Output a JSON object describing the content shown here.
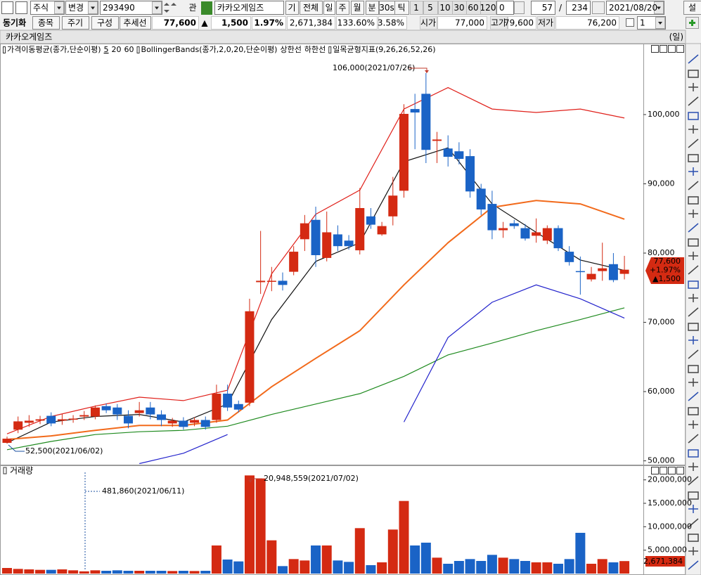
{
  "toolbar": {
    "row1": [
      "주식",
      "변경",
      "293490",
      "관",
      "카카오게임즈",
      "기",
      "전체",
      "일",
      "주",
      "월",
      "분",
      "30s",
      "틱",
      "1",
      "5",
      "10",
      "30",
      "60",
      "120",
      "0",
      "57",
      "/",
      "234",
      "2021/08/20",
      "설"
    ],
    "row2": [
      "동기화",
      "종목",
      "주기",
      "구성",
      "추세선",
      "77,600",
      "▲",
      "1,500",
      "1.97%",
      "2,671,384",
      "133.60%",
      "3.58%",
      "시가",
      "77,000",
      "고가",
      "79,600",
      "저가",
      "76,200",
      "1"
    ]
  },
  "chart_title": "카카오게임즈",
  "period": "(일)",
  "chart_data": [
    {
      "type": "candlestick",
      "indicators": [
        "가격이동평균(종가,단순이평)",
        "BollingerBands(종가,2,0,20,단순이평)",
        "일목균형지표(9,26,26,52,26)"
      ],
      "up_color": "#d42a12",
      "down_color": "#1a63c6",
      "open": [
        52600,
        54500,
        55500,
        55800,
        56500,
        55800,
        56000,
        56400,
        56400,
        57900,
        57700,
        56500,
        56900,
        57700,
        56700,
        55400,
        55800,
        55500,
        55900,
        55900,
        59700,
        58200,
        58400,
        75800,
        75900,
        76000,
        77300,
        82000,
        84800,
        79300,
        82700,
        81800,
        80400,
        85300,
        82700,
        85300,
        89000,
        100800,
        103000,
        96200,
        95100,
        94700,
        94000,
        89300,
        87100,
        83300,
        84300,
        83600,
        82500,
        81800,
        83600,
        80200,
        77400,
        76200,
        77400,
        78400,
        77000
      ],
      "high": [
        53500,
        56400,
        56600,
        56500,
        57000,
        56800,
        56600,
        57200,
        58000,
        58300,
        58200,
        57300,
        58500,
        58500,
        57300,
        56200,
        56300,
        56300,
        56400,
        61000,
        61000,
        58700,
        73400,
        83200,
        78000,
        77200,
        81000,
        85500,
        86700,
        86000,
        84000,
        82600,
        89400,
        86500,
        84500,
        91000,
        101500,
        103000,
        106000,
        97500,
        97000,
        96000,
        95000,
        90000,
        89000,
        84500,
        84800,
        84200,
        85000,
        84000,
        84000,
        81000,
        79500,
        78000,
        81500,
        80000,
        79600
      ],
      "low": [
        52500,
        54000,
        54900,
        55300,
        55000,
        55200,
        55500,
        55900,
        56000,
        56900,
        55900,
        54700,
        56400,
        56000,
        55000,
        54900,
        54500,
        55000,
        54500,
        55500,
        57200,
        57000,
        57900,
        74100,
        74500,
        74600,
        76800,
        80300,
        78000,
        78800,
        80300,
        80500,
        79800,
        83500,
        82500,
        84000,
        88000,
        95000,
        93000,
        93000,
        92500,
        92800,
        88000,
        85500,
        82000,
        82200,
        83500,
        81800,
        81500,
        81300,
        80300,
        78200,
        74000,
        75900,
        76000,
        75800,
        76200
      ],
      "close": [
        53200,
        55700,
        55800,
        56000,
        55400,
        56000,
        56100,
        56600,
        57700,
        57300,
        56700,
        55400,
        57300,
        56700,
        55900,
        55800,
        54900,
        55900,
        54900,
        59700,
        57700,
        57400,
        71600,
        76000,
        76000,
        75400,
        80200,
        84300,
        79700,
        83000,
        81000,
        81000,
        86500,
        84100,
        83900,
        88300,
        100100,
        100300,
        94900,
        96400,
        93900,
        93600,
        88900,
        86300,
        83300,
        83600,
        83900,
        82100,
        83000,
        83600,
        80700,
        78700,
        77300,
        77000,
        77800,
        76100,
        77600
      ],
      "series": [
        {
          "name": "5",
          "color": "#111111",
          "x": [
            0,
            4,
            8,
            12,
            16,
            20,
            24,
            28,
            32,
            36,
            40,
            44,
            48,
            52,
            56
          ],
          "values": [
            52600,
            55600,
            56400,
            56700,
            55600,
            58200,
            70400,
            78800,
            81500,
            93200,
            95200,
            87100,
            83000,
            79000,
            77500
          ]
        },
        {
          "name": "20",
          "color": "#f26a1b",
          "x": [
            0,
            4,
            8,
            12,
            16,
            20,
            24,
            28,
            32,
            36,
            40,
            44,
            48,
            52,
            56
          ],
          "values": [
            53100,
            53600,
            54400,
            55100,
            55100,
            55900,
            60700,
            64800,
            68800,
            75400,
            81500,
            86600,
            87600,
            87100,
            84900
          ]
        },
        {
          "name": "60",
          "color": "#1e8a1e",
          "x": [
            0,
            4,
            8,
            12,
            16,
            20,
            24,
            28,
            32,
            36,
            40,
            44,
            48,
            52,
            56
          ],
          "values": [
            51600,
            52800,
            53800,
            54200,
            54400,
            55000,
            56700,
            58200,
            59700,
            62200,
            65300,
            67000,
            68800,
            70400,
            72100
          ]
        },
        {
          "name": "상한선",
          "color": "#e0201a",
          "x": [
            0,
            4,
            8,
            12,
            16,
            20,
            24,
            28,
            32,
            36,
            40,
            44,
            48,
            52,
            56
          ],
          "values": [
            53900,
            56400,
            57900,
            59200,
            58700,
            60200,
            77000,
            85600,
            89100,
            100800,
            103900,
            100800,
            100300,
            100800,
            99500
          ]
        },
        {
          "name": "하한선",
          "color": "#2222cc",
          "x": [
            0,
            4,
            8,
            12,
            16,
            20,
            24,
            28,
            32,
            36,
            40,
            44,
            48,
            52,
            56
          ],
          "values": [
            null,
            null,
            null,
            49600,
            51100,
            53800,
            null,
            null,
            null,
            55600,
            67800,
            72900,
            75400,
            73400,
            70600
          ]
        }
      ],
      "ylim": [
        49350,
        110250
      ],
      "yticks": [
        {
          "value": 50000,
          "label": "50,000"
        },
        {
          "value": 60000,
          "label": "60,000"
        },
        {
          "value": 70000,
          "label": "70,000"
        },
        {
          "value": 80000,
          "label": "80,000"
        },
        {
          "value": 90000,
          "label": "90,000"
        },
        {
          "value": 100000,
          "label": "100,000"
        }
      ],
      "annotations": [
        "106,000(2021/07/26)",
        "52,500(2021/06/02)"
      ],
      "marker_labels": [
        "77,600",
        "+1.97%",
        "▲1,500"
      ],
      "marker_color": "#d42a12"
    },
    {
      "type": "volume",
      "title": "거래량",
      "up_color": "#d42a12",
      "down_color": "#1a63c6",
      "values": [
        1200000,
        1000000,
        900000,
        800000,
        800000,
        900000,
        700000,
        481860,
        700000,
        600000,
        700000,
        600000,
        600000,
        600000,
        600000,
        550000,
        600000,
        550000,
        600000,
        6000000,
        3000000,
        2600000,
        20948559,
        20300000,
        7100000,
        1600000,
        3100000,
        2800000,
        6000000,
        6000000,
        2800000,
        2500000,
        9700000,
        1800000,
        2400000,
        9400000,
        15500000,
        6000000,
        6600000,
        3400000,
        2100000,
        2700000,
        3100000,
        2700000,
        4000000,
        3400000,
        3100000,
        2700000,
        2400000,
        2400000,
        2100000,
        3100000,
        8700000,
        2100000,
        3100000,
        2400000,
        2671384
      ],
      "ylim": [
        0,
        21600000
      ],
      "yticks": [
        {
          "value": 5000000,
          "label": "5,000,000"
        },
        {
          "value": 10000000,
          "label": "10,000,000"
        },
        {
          "value": 15000000,
          "label": "15,000,000"
        },
        {
          "value": 20000000,
          "label": "20,000,000"
        }
      ],
      "annotations": [
        "20,948,559(2021/07/02)",
        "481,860(2021/06/11)"
      ],
      "marker_label": "2,671,384",
      "marker_color": "#d42a12"
    }
  ]
}
